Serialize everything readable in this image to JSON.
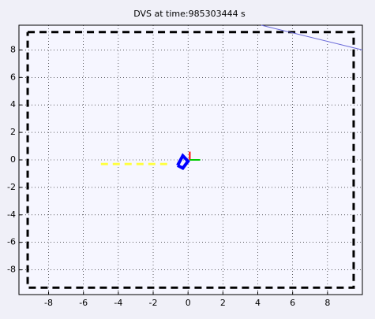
{
  "chart_data": {
    "type": "line",
    "title": "DVS at time:985303444 s",
    "xlim": [
      -9.7,
      10
    ],
    "ylim": [
      -9.8,
      9.8
    ],
    "xticks": [
      -8,
      -6,
      -4,
      -2,
      0,
      2,
      4,
      6,
      8
    ],
    "yticks": [
      -8,
      -6,
      -4,
      -2,
      0,
      2,
      4,
      6,
      8
    ],
    "grid": true,
    "series": [
      {
        "color": "#000000",
        "style": "dashed",
        "width": 3,
        "x": [
          -9.2,
          9.5,
          9.5,
          -9.2,
          -9.2
        ],
        "values": [
          9.3,
          9.3,
          -9.3,
          -9.3,
          9.3
        ]
      },
      {
        "color": "#6a6ad8",
        "style": "solid",
        "width": 1,
        "x": [
          4.2,
          10
        ],
        "values": [
          9.8,
          8
        ]
      },
      {
        "color": "#ffff40",
        "style": "dashed",
        "width": 3,
        "x": [
          -5,
          -1
        ],
        "values": [
          -0.3,
          -0.3
        ]
      },
      {
        "color": "#0000ff",
        "style": "solid",
        "width": 4,
        "x": [
          -0.6,
          -0.3,
          0,
          -0.3,
          -0.6
        ],
        "values": [
          -0.4,
          0.3,
          -0.1,
          -0.6,
          -0.4
        ]
      },
      {
        "color": "#ff0000",
        "style": "solid",
        "width": 2,
        "x": [
          0.1,
          0.1
        ],
        "values": [
          0,
          0.6
        ]
      },
      {
        "color": "#00cc00",
        "style": "solid",
        "width": 2,
        "x": [
          0.1,
          0.7
        ],
        "values": [
          0,
          0
        ]
      }
    ]
  }
}
